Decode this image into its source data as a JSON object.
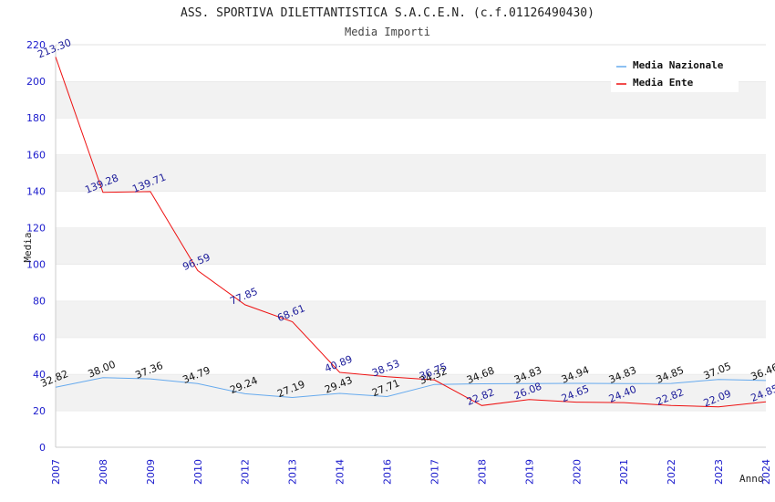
{
  "chart_data": {
    "type": "line",
    "title": "ASS. SPORTIVA DILETTANTISTICA S.A.C.E.N. (c.f.01126490430)",
    "subtitle": "Media Importi",
    "xlabel": "Anno",
    "ylabel": "Media",
    "ylim": [
      0,
      220
    ],
    "yticks": [
      0,
      20,
      40,
      60,
      80,
      100,
      120,
      140,
      160,
      180,
      200,
      220
    ],
    "categories": [
      "2007",
      "2008",
      "2009",
      "2010",
      "2012",
      "2013",
      "2014",
      "2016",
      "2017",
      "2018",
      "2019",
      "2020",
      "2021",
      "2022",
      "2023",
      "2024"
    ],
    "grid": "horizontal bands",
    "legend_position": "top-right",
    "series": [
      {
        "name": "Media Nazionale",
        "color": "#66aaee",
        "values": [
          32.82,
          38.0,
          37.36,
          34.79,
          29.24,
          27.19,
          29.43,
          27.71,
          34.32,
          34.68,
          34.83,
          34.94,
          34.83,
          34.85,
          37.05,
          36.46
        ],
        "labels": [
          "32.82",
          "38.00",
          "37.36",
          "34.79",
          "29.24",
          "27.19",
          "29.43",
          "27.71",
          "34.32",
          "34.68",
          "34.83",
          "34.94",
          "34.83",
          "34.85",
          "37.05",
          "36.46"
        ]
      },
      {
        "name": "Media Ente",
        "color": "#ee1111",
        "values": [
          213.3,
          139.28,
          139.71,
          96.59,
          77.85,
          68.61,
          40.89,
          38.53,
          36.75,
          22.82,
          26.08,
          24.65,
          24.4,
          22.82,
          22.09,
          24.85
        ],
        "labels": [
          "213.30",
          "139.28",
          "139.71",
          "96.59",
          "77.85",
          "68.61",
          "40.89",
          "38.53",
          "36.75",
          "22.82",
          "26.08",
          "24.65",
          "24.40",
          "22.82",
          "22.09",
          "24.85"
        ]
      }
    ]
  }
}
